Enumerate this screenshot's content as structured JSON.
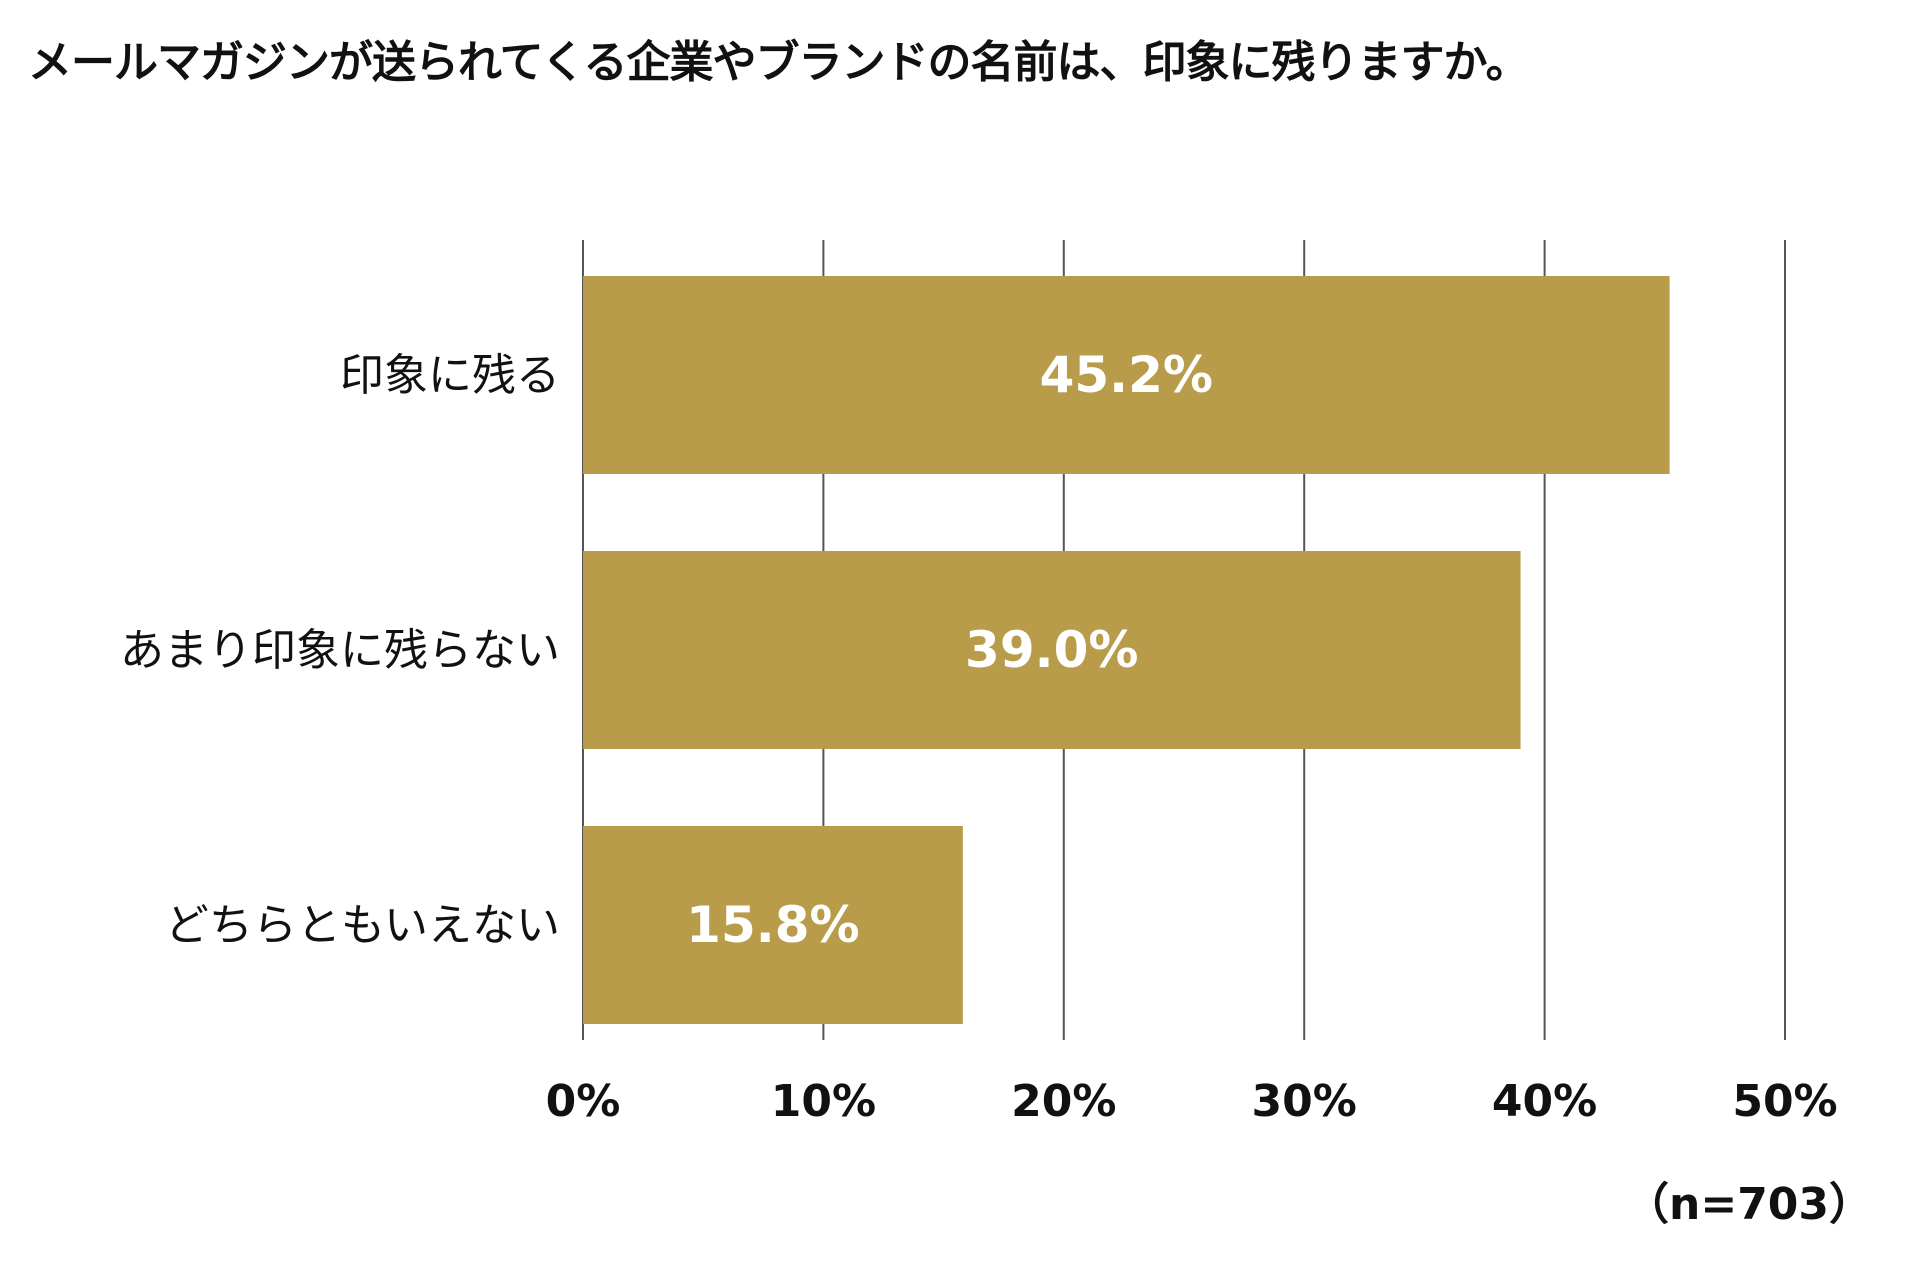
{
  "chart_data": {
    "type": "bar",
    "orientation": "horizontal",
    "title": "メールマガジンが送られてくる企業やブランドの名前は、印象に残りますか。",
    "categories": [
      "印象に残る",
      "あまり印象に残らない",
      "どちらともいえない"
    ],
    "values": [
      45.2,
      39.0,
      15.8
    ],
    "value_labels": [
      "45.2%",
      "39.0%",
      "15.8%"
    ],
    "xlim": [
      0,
      50
    ],
    "xticks": [
      0,
      10,
      20,
      30,
      40,
      50
    ],
    "xtick_labels": [
      "0%",
      "10%",
      "20%",
      "30%",
      "40%",
      "50%"
    ],
    "grid": true,
    "bar_color": "#b89c4a",
    "value_label_color": "#ffffff",
    "note": "（n=703）"
  }
}
